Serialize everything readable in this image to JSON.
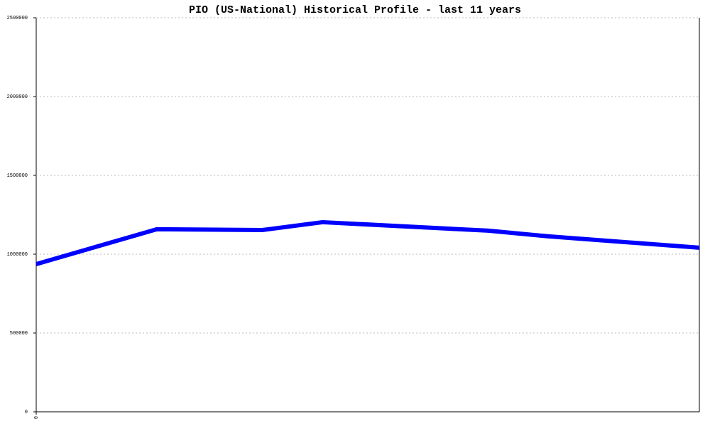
{
  "chart_data": {
    "type": "line",
    "title": "PIO (US-National) Historical Profile - last 11 years",
    "x": [
      0,
      2,
      3.75,
      4.75,
      7.5,
      8.5,
      11
    ],
    "series": [
      {
        "color": "#0000ff",
        "values": [
          937000,
          1158000,
          1153000,
          1203000,
          1149000,
          1113000,
          1041000
        ]
      }
    ],
    "xlim": [
      0,
      11
    ],
    "xticks": [
      0
    ],
    "ylim": [
      0,
      2500000
    ],
    "yticks": [
      0,
      500000,
      1000000,
      1500000,
      2000000,
      2500000
    ],
    "grid": true
  }
}
